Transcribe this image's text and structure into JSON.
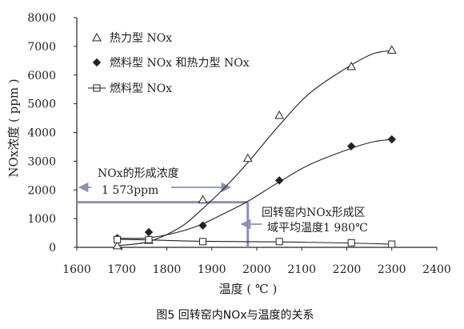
{
  "chart_data": {
    "type": "line",
    "xlabel": "温度 ( ℃ )",
    "ylabel": "NOx浓度 ( ppm )",
    "xlim": [
      1600,
      2400
    ],
    "ylim": [
      0,
      8000
    ],
    "xticks": [
      1600,
      1700,
      1800,
      1900,
      2000,
      2100,
      2200,
      2300,
      2400
    ],
    "yticks": [
      0,
      1000,
      2000,
      3000,
      4000,
      5000,
      6000,
      7000,
      8000
    ],
    "grid": false,
    "legend_position": "top-left",
    "series": [
      {
        "name": "热力型 NOx",
        "marker": "triangle-open",
        "points": [
          [
            1690,
            60
          ],
          [
            1760,
            250
          ],
          [
            1880,
            1660
          ],
          [
            1980,
            3100
          ],
          [
            2050,
            4600
          ],
          [
            2210,
            6300
          ],
          [
            2300,
            6870
          ]
        ],
        "curve": [
          [
            1690,
            60
          ],
          [
            1760,
            200
          ],
          [
            1830,
            700
          ],
          [
            1880,
            1350
          ],
          [
            1930,
            2100
          ],
          [
            1980,
            2950
          ],
          [
            2050,
            4250
          ],
          [
            2120,
            5400
          ],
          [
            2210,
            6350
          ],
          [
            2260,
            6750
          ],
          [
            2300,
            6850
          ]
        ]
      },
      {
        "name": "燃料型 NOx 和热力型 NOx",
        "marker": "diamond-filled",
        "points": [
          [
            1690,
            320
          ],
          [
            1760,
            530
          ],
          [
            1880,
            760
          ],
          [
            2050,
            2330
          ],
          [
            2210,
            3520
          ],
          [
            2300,
            3760
          ]
        ],
        "curve": [
          [
            1690,
            320
          ],
          [
            1760,
            330
          ],
          [
            1830,
            550
          ],
          [
            1880,
            820
          ],
          [
            1930,
            1200
          ],
          [
            1980,
            1600
          ],
          [
            2050,
            2280
          ],
          [
            2120,
            2900
          ],
          [
            2210,
            3450
          ],
          [
            2260,
            3680
          ],
          [
            2300,
            3760
          ]
        ]
      },
      {
        "name": "燃料型 NOx",
        "marker": "square-open",
        "points": [
          [
            1690,
            270
          ],
          [
            1760,
            270
          ],
          [
            1880,
            200
          ],
          [
            2050,
            200
          ],
          [
            2210,
            160
          ],
          [
            2300,
            110
          ]
        ],
        "curve": [
          [
            1690,
            280
          ],
          [
            1760,
            260
          ],
          [
            1880,
            210
          ],
          [
            2050,
            190
          ],
          [
            2210,
            150
          ],
          [
            2300,
            110
          ]
        ]
      }
    ],
    "annotations": {
      "conc_label": "NOx的形成浓度",
      "conc_value": "1 573ppm",
      "conc_y": 1573,
      "temp_label_line1": "回转窑内NOx形成区",
      "temp_label_line2": "域平均温度1 980℃",
      "temp_x": 1980
    }
  },
  "caption": "图5  回转窑内NOx与温度的关系",
  "colors": {
    "ink": "#222222",
    "annotation": "#8a8fb8"
  }
}
